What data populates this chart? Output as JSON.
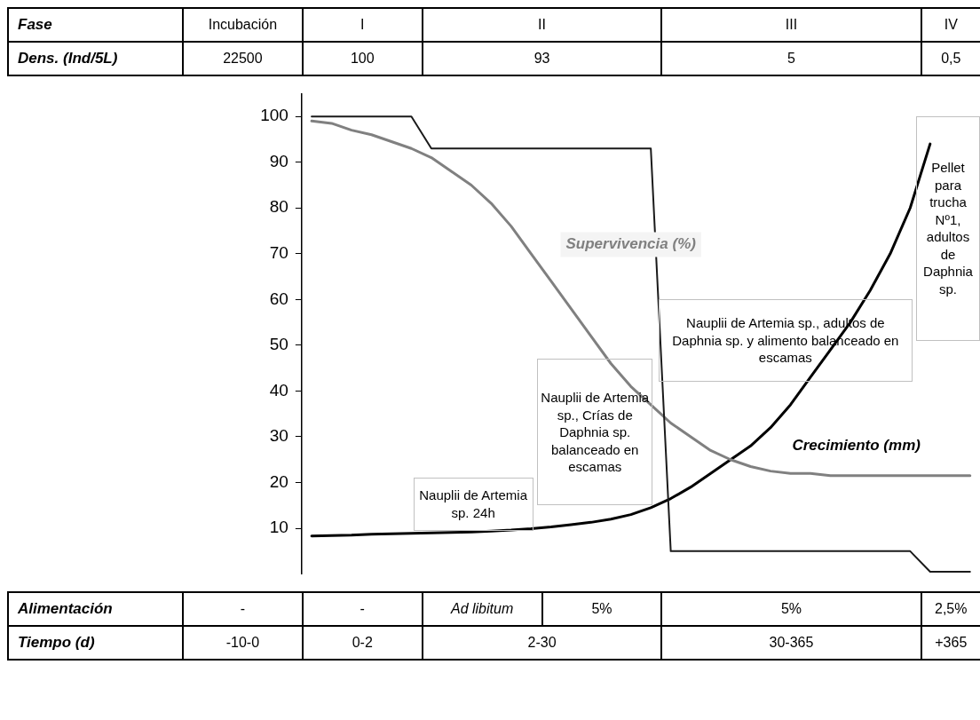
{
  "chart_data": {
    "type": "line",
    "categories": [
      null,
      null,
      null,
      null,
      null,
      null,
      null,
      null,
      null,
      null,
      null,
      null,
      null,
      null,
      null,
      null,
      null,
      null,
      null,
      null,
      null,
      null,
      null,
      null,
      null,
      null,
      null,
      null,
      null,
      null,
      null,
      null,
      null,
      null
    ],
    "ylim": [
      0,
      105
    ],
    "yticks": [
      10,
      20,
      30,
      40,
      50,
      60,
      70,
      80,
      90,
      100
    ],
    "grid": false,
    "legend": false,
    "tick_labels": "y",
    "series": [
      {
        "color": "#1a1a1a",
        "values": [
          100,
          100,
          100,
          100,
          100,
          100,
          93,
          93,
          93,
          93,
          93,
          93,
          93,
          93,
          93,
          93,
          93,
          93,
          5,
          5,
          5,
          5,
          5,
          5,
          5,
          5,
          5,
          5,
          5,
          5,
          5,
          0.5,
          0.5,
          0.5
        ]
      },
      {
        "name": "Supervivencia (%)",
        "color": "#808080",
        "values": [
          99,
          98.5,
          97,
          96,
          94.5,
          93,
          91,
          88,
          85,
          81,
          76,
          70,
          64,
          58,
          52,
          46,
          41,
          37,
          33,
          30,
          27,
          25,
          23.5,
          22.5,
          22,
          22,
          21.5,
          21.5,
          21.5,
          21.5,
          21.5,
          21.5,
          21.5,
          21.5
        ]
      },
      {
        "name": "Crecimiento (mm)",
        "color": "#000000",
        "values": [
          8.3,
          8.4,
          8.5,
          8.7,
          8.8,
          8.9,
          9,
          9.1,
          9.2,
          9.4,
          9.6,
          9.9,
          10.3,
          10.8,
          11.3,
          12,
          13,
          14.5,
          16.5,
          19,
          22,
          25,
          28,
          32,
          37,
          43,
          49,
          55,
          62,
          70,
          80,
          94,
          null,
          null
        ]
      }
    ],
    "annotations": [
      "Fase",
      "Incubación",
      "I",
      "II",
      "III",
      "IV",
      "Dens. (Ind/5L)",
      "22500",
      "100",
      "93",
      "5",
      "0,5",
      "Alimentación",
      "-",
      "-",
      "Ad libitum",
      "5%",
      "5%",
      "2,5%",
      "Tiempo (d)",
      "-10-0",
      "0-2",
      "2-30",
      "30-365",
      "+365",
      "Nauplii de Artemia sp. 24h",
      "Nauplii de Artemia sp., Crías de Daphnia sp. balanceado en escamas",
      "Nauplii de Artemia sp., adultos de Daphnia sp. y alimento balanceado en escamas",
      "Pellet para trucha Nº1, adultos de Daphnia sp."
    ]
  }
}
